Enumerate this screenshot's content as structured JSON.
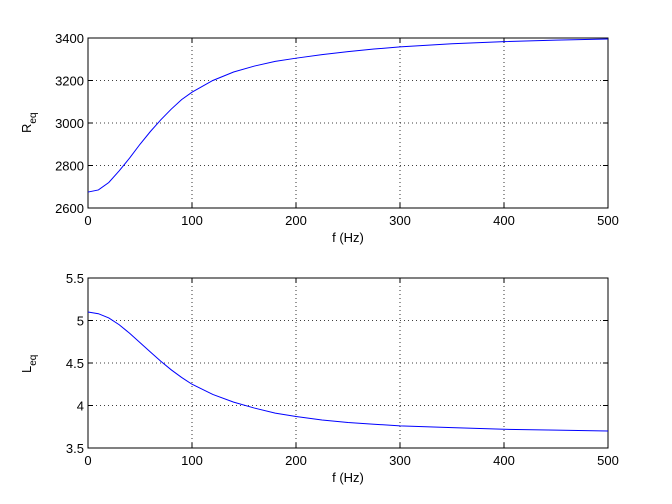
{
  "chart_data": [
    {
      "type": "line",
      "xlabel": "f (Hz)",
      "ylabel": "R",
      "ylabel_sub": "eq",
      "xlim": [
        0,
        500
      ],
      "ylim": [
        2600,
        3400
      ],
      "xticks": [
        0,
        100,
        200,
        300,
        400,
        500
      ],
      "yticks": [
        2600,
        2800,
        3000,
        3200,
        3400
      ],
      "xtick_labels": [
        "0",
        "100",
        "200",
        "300",
        "400",
        "500"
      ],
      "ytick_labels": [
        "2600",
        "2800",
        "3000",
        "3200",
        "3400"
      ],
      "grid": true,
      "color": "#0000ff",
      "series": [
        {
          "x": [
            0,
            10,
            20,
            30,
            40,
            50,
            60,
            70,
            80,
            90,
            100,
            120,
            140,
            160,
            180,
            200,
            225,
            250,
            275,
            300,
            350,
            400,
            450,
            500
          ],
          "values": [
            2675,
            2685,
            2720,
            2775,
            2835,
            2900,
            2960,
            3015,
            3065,
            3110,
            3145,
            3200,
            3240,
            3268,
            3290,
            3305,
            3322,
            3336,
            3348,
            3358,
            3373,
            3383,
            3390,
            3395
          ]
        }
      ]
    },
    {
      "type": "line",
      "xlabel": "f (Hz)",
      "ylabel": "L",
      "ylabel_sub": "eq",
      "xlim": [
        0,
        500
      ],
      "ylim": [
        3.5,
        5.5
      ],
      "xticks": [
        0,
        100,
        200,
        300,
        400,
        500
      ],
      "yticks": [
        3.5,
        4,
        4.5,
        5,
        5.5
      ],
      "xtick_labels": [
        "0",
        "100",
        "200",
        "300",
        "400",
        "500"
      ],
      "ytick_labels": [
        "3.5",
        "4",
        "4.5",
        "5",
        "5.5"
      ],
      "grid": true,
      "color": "#0000ff",
      "series": [
        {
          "x": [
            0,
            10,
            20,
            30,
            40,
            50,
            60,
            70,
            80,
            90,
            100,
            120,
            140,
            160,
            180,
            200,
            225,
            250,
            275,
            300,
            350,
            400,
            450,
            500
          ],
          "values": [
            5.1,
            5.08,
            5.03,
            4.95,
            4.85,
            4.74,
            4.63,
            4.52,
            4.42,
            4.33,
            4.25,
            4.13,
            4.04,
            3.97,
            3.91,
            3.87,
            3.83,
            3.8,
            3.78,
            3.76,
            3.74,
            3.72,
            3.71,
            3.7
          ]
        }
      ]
    }
  ]
}
